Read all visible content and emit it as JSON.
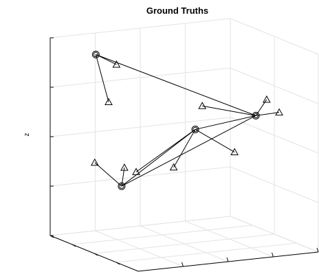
{
  "chart_data": {
    "type": "scatter",
    "title": "Ground Truths",
    "xlabel": "",
    "ylabel": "",
    "zlabel": "z",
    "grid": true,
    "series": [
      {
        "marker": "circle",
        "points": [
          {
            "id": "A",
            "x": 0.18,
            "y": 0.85,
            "z": 3.7
          },
          {
            "id": "B",
            "x": 0.26,
            "y": 0.72,
            "z": 1.1
          },
          {
            "id": "C",
            "x": 0.62,
            "y": 0.62,
            "z": 2.18
          },
          {
            "id": "D",
            "x": 0.8,
            "y": 0.3,
            "z": 2.62
          }
        ]
      },
      {
        "marker": "triangle",
        "points": [
          {
            "id": "A1",
            "x": 0.28,
            "y": 0.82,
            "z": 3.48
          },
          {
            "id": "A2",
            "x": 0.3,
            "y": 0.95,
            "z": 2.62
          },
          {
            "id": "B1",
            "x": 0.14,
            "y": 0.78,
            "z": 1.58
          },
          {
            "id": "B2",
            "x": 0.28,
            "y": 0.73,
            "z": 1.46
          },
          {
            "id": "B3",
            "x": 0.36,
            "y": 0.76,
            "z": 1.32
          },
          {
            "id": "B4",
            "x": 0.5,
            "y": 0.62,
            "z": 1.46
          },
          {
            "id": "C1",
            "x": 0.6,
            "y": 0.5,
            "z": 2.75
          },
          {
            "id": "C2",
            "x": 0.75,
            "y": 0.44,
            "z": 1.8
          },
          {
            "id": "D1",
            "x": 0.85,
            "y": 0.28,
            "z": 2.94
          },
          {
            "id": "D2",
            "x": 0.9,
            "y": 0.24,
            "z": 2.69
          }
        ]
      }
    ],
    "links": [
      [
        "A",
        "A1"
      ],
      [
        "A",
        "A2"
      ],
      [
        "A",
        "D"
      ],
      [
        "B",
        "B1"
      ],
      [
        "B",
        "B2"
      ],
      [
        "B",
        "C"
      ],
      [
        "B",
        "D"
      ],
      [
        "C",
        "B3"
      ],
      [
        "C",
        "B4"
      ],
      [
        "C",
        "C2"
      ],
      [
        "C",
        "D"
      ],
      [
        "D",
        "C1"
      ],
      [
        "D",
        "D1"
      ],
      [
        "D",
        "D2"
      ]
    ]
  }
}
